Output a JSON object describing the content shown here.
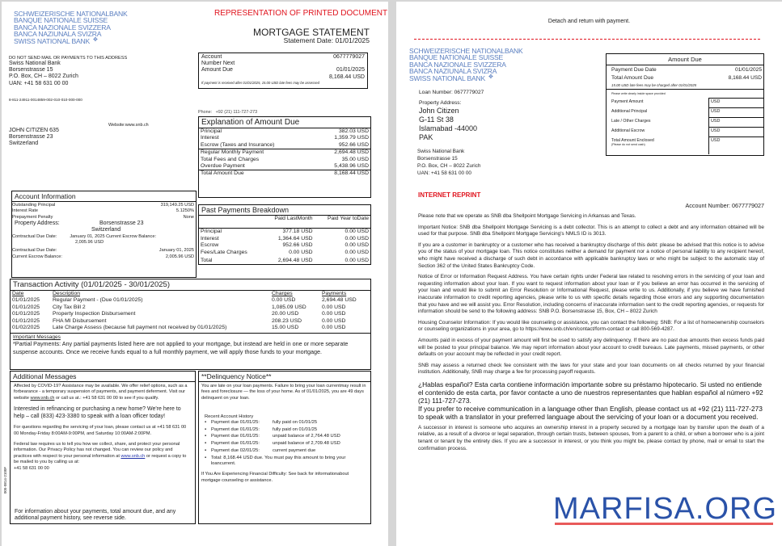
{
  "bank_logo": [
    "SCHWEIZERISCHE NATIONALBANK",
    "BANQUE NATIONALE SUISSE",
    "BANCA NAZIONALE SVIZZERA",
    "BANCA NAZIUNALA SVIZRA",
    "SWISS NATIONAL BANK"
  ],
  "statement": {
    "banner": "REPRESENTATION OF PRINTED DOCUMENT",
    "title": "MORTGAGE STATEMENT",
    "date": "Statement Date: 01/01/2025",
    "return_address": {
      "warning": "DO NOT SEND MAIL OR PAYMENTS TO THIS ADDRESS",
      "lines": [
        "Swiss National Bank",
        "Borsenstrasse 15",
        "P.O. Box, CH – 8022 Zurich",
        "UAN: +41 58 631 00 00"
      ]
    },
    "barcode_number": "8-811-24911-0014859-002-010-010-000-000",
    "website": "Website:www.snb.ch",
    "phone_label": "Phone:",
    "phone": "+92 (21) 111-727-273",
    "recipient": [
      "JOHN CITIZEN 635",
      "Borsenstrasse 23",
      "Switzerland"
    ],
    "account_box": {
      "rows": [
        [
          "Account",
          "0677779027"
        ],
        [
          "Number Next",
          ""
        ],
        [
          "Amount Due",
          "01/01/2025"
        ],
        [
          "",
          "8,168.44 USD"
        ]
      ],
      "note": "If payment is received after 01/01/2025, 15.00 USD late fees may be assessed"
    },
    "explanation": {
      "title": "Explanation of Amount Due",
      "rows": [
        [
          "Principal",
          "382.03 USD"
        ],
        [
          "Interest",
          "1,359.79 USD"
        ],
        [
          "Escrow (Taxes and Insurance)",
          "952.66 USD"
        ],
        [
          "Regular Monthly Payment",
          "2,694.48 USD"
        ],
        [
          "Total Fees and Charges",
          "35.00 USD"
        ],
        [
          "Overdue Payment",
          "5,438.96 USD"
        ],
        [
          "Total Amount Due",
          "8,168.44 USD"
        ]
      ]
    },
    "account_info": {
      "title": "Account Information",
      "rows": [
        [
          "Outstanding Principal",
          "319,149.25 USD"
        ],
        [
          "Interest Rate",
          "5.1250%"
        ],
        [
          "Prepayment Penalty",
          "None"
        ]
      ],
      "property_label": "Property Address:",
      "property": [
        "Borsenstrasse 23",
        "Switzerland"
      ],
      "due_line": "Contractual Due Date:",
      "due_line_value": "January 01, 2025 Current Escrow Balance:",
      "due_line_value2": "2,005.96 USD",
      "rows2": [
        [
          "Contractual Due Date:",
          "January 01, 2025"
        ],
        [
          "Current Escrow Balance:",
          "2,005.96 USD"
        ]
      ]
    },
    "past_payments": {
      "title": "Past Payments Breakdown",
      "headers": [
        "",
        "Paid LastMonth",
        "Paid Year toDate"
      ],
      "rows": [
        [
          "Principal",
          "377.18 USD",
          "0.00 USD"
        ],
        [
          "Interest",
          "1,364.64 USD",
          "0.00 USD"
        ],
        [
          "Escrow",
          "952.66 USD",
          "0.00 USD"
        ],
        [
          "Fees/Late Charges",
          "0.00 USD",
          "0.00 USD"
        ],
        [
          "Total",
          "2,694.48 USD",
          "0.00 USD"
        ]
      ]
    },
    "transactions": {
      "title": "Transaction Activity (01/01/2025 - 30/01/2025)",
      "headers": [
        "Date",
        "Description",
        "Charges",
        "Payments"
      ],
      "rows": [
        [
          "01/01/2025",
          "Regular Payment - (Due 01/01/2025)",
          "0.00 USD",
          "2,694.48 USD"
        ],
        [
          "01/01/2025",
          "City Tax Bill 2",
          "1,085.09 USD",
          "0.00 USD"
        ],
        [
          "01/01/2025",
          "Property Inspection Disbursement",
          "20.00 USD",
          "0.00 USD"
        ],
        [
          "01/01/2025",
          "FHA MI Disbursement",
          "208.23 USD",
          "0.00 USD"
        ],
        [
          "01/02/2025",
          "Late Charge Assess (because full payment not received by 01/01/2025)",
          "15.00 USD",
          "0.00 USD"
        ]
      ]
    },
    "important": {
      "title": "Important Messages",
      "text": "*Partial Payments: Any partial payments listed here are not applied to your mortgage, but instead are held in one or more separate suspense accounts. Once we receive funds equal to a full monthly payment, we will apply those funds to your mortgage."
    },
    "additional": {
      "title": "Additional Messages",
      "covid_a": "Affected by COVID-19? Assistance may be available. We offer relief options, such as a forbearance - a temporary suspension of payments, and payment deferment. Visit our website ",
      "covid_link": "www.snb.ch",
      "covid_b": " or call us at.: +41 58 631 00 00 to see if you qualify.",
      "refi": "Interested in refinancing or purchasing a new home? We're here to help – call (833) 423-3380 to speak with a loan officer today!",
      "questions": "For questions regarding the servicing of your loan, please contact us at +41 58 631 00 00 Monday-Friday 8:00AM-9:00PM, and Saturday 10:00AM-2:00PM.",
      "privacy_a": "Federal law requires us to tell you how we collect, share, and protect your personal information. Our Privacy Policy has not changed. You can review our policy and practices with respect to your personal information at ",
      "privacy_link": "www.snb.ch",
      "privacy_b": " or request a copy to be mailed to you by calling us at:",
      "privacy_phone": "+41 58 631 00 00",
      "footer": "For information about your payments, total amount due, and any additional payment history, see reverse side."
    },
    "delinquency": {
      "title": "**Delinquency Notice**",
      "text": "You are late on your loan payments. Failure to bring your loan currentmay result in fees and foreclosure — the loss of your home. As of 01/01/2025, you are 49 days delinquent on your loan.",
      "history_title": "Recent Account History",
      "history": [
        [
          "Payment due 01/01/25:",
          "fully paid on 01/01/25"
        ],
        [
          "Payment due 01/01/25:",
          "fully paid on 01/01/25"
        ],
        [
          "Payment due 01/01/25:",
          "unpaid balance of 2,764.48 USD"
        ],
        [
          "Payment due 01/01/25:",
          "unpaid balance of 2,709.48 USD"
        ],
        [
          "Payment due 02/01/25:",
          "current payment due"
        ]
      ],
      "total": "Total: 8,168.44 USD due. You must pay this amount to bring your loancurrent.",
      "hardship": "If You Are Experiencing Financial Difficulty: See back for informationabout mortgage counseling or assistance."
    },
    "side_code": "005-0814-2100F"
  },
  "coupon": {
    "detach": "Detach and return with payment.",
    "loan_number": "Loan Number: 0677779027",
    "property_label": "Property Address:",
    "property": [
      "John Citizen",
      "G-11 St 38",
      "Islamabad -44000",
      "PAK"
    ],
    "bank": [
      "Swiss National Bank",
      "Borsenstrasse 15",
      "P.O. Box, CH – 8022 Zurich",
      "UAN: +41 58 631 00 00"
    ],
    "amount_due": {
      "title": "Amount Due",
      "rows": [
        [
          "Payment Due Date",
          "01/01/2025"
        ],
        [
          "Total Amount Due",
          "8,168.44 USD"
        ]
      ],
      "late_note": "15.00 USD late fees may be charged after 01/01/2025",
      "instruction": "Please write clearly inside space provided",
      "fields": [
        [
          "Payment Amount",
          "USD"
        ],
        [
          "Additional Principal",
          "USD"
        ],
        [
          "Late / Other Charges",
          "USD"
        ],
        [
          "Additional Escrow",
          "USD"
        ],
        [
          "Total Amount Enclosed",
          "USD"
        ]
      ],
      "cash_note": "(Please do not send cash)"
    },
    "reprint": "INTERNET REPRINT",
    "account_number": "Account Number: 0677779027",
    "paragraphs": [
      "Please note that we operate as SNB dba Shellpoint Mortgage Servicing in Arkansas and Texas.",
      "Important Notice: SNB dba Shellpoint Mortgage Servicing is a debt collector. This is an attempt to collect a debt and any information obtained will be used for that purpose. SNB dba Shellpoint Mortgage Servicing's NMLS ID is 3013.",
      "If you are a customer in bankruptcy or a customer who has received a bankruptcy discharge of this debt: please be advised that this notice is to advise you of the status of your mortgage loan. This notice constitutes neither a demand for payment nor a notice of personal liability to any recipient hereof, who might have received a discharge of such debt in accordance with applicable bankruptcy laws or who might be subject to the automatic stay of Section 362 of the United States Bankruptcy Code.",
      "Notice of Error or Information Request Address. You have certain rights under Federal law related to resolving errors in the servicing of your loan and requesting information about your loan. If you want to request information about your loan or if you believe an error has occurred in the servicing of your loan and would like to submit an Error Resolution or Informational Request, please write to us. Additionally, if you believe we have furnished inaccurate information to credit reporting agencies, please write to us with specific details regarding those errors and any supporting documentation that you have and we will assist you. Error Resolution, including concerns of inaccurate information sent to the credit reporting agencies, or requests for information should be send to the following address: SNB P.O. Borsenstrasse 15, Box, CH – 8022 Zurich",
      "Housing Counselor Information: If you would like counseling or assistance, you can contact the following: SNB: For a list of homeownership counselors or counseling organizations in your area, go to https://www.snb.ch/en/contact/form-contact or call 800-569-4287.",
      "Amounts paid in excess of your payment amount will first be used to satisfy any delinquency. If there are no past due amounts then excess funds paid will be posted to your principal balance. We may report information about your account to credit bureaus. Late payments, missed payments, or other defaults on your account may be reflected in your credit report.",
      "SNB may assess a returned check fee consistent with the laws for your state and your loan documents on all checks returned by your financial institution. Additionally, SNB may charge a fee for processing payoff requests."
    ],
    "spanish": "¿Hablas español? Esta carta contiene información importante sobre su préstamo hipotecario. Si usted no entiende el contenido de esta carta, por favor contacte a uno de nuestros representantes que hablan español al número +92 (21) 111-727-273.",
    "language": "If you prefer to receive communication in a language other than English, please contact us at +92 (21) 111-727-273 to speak with a translator in your preferred language about the servicing of your loan or a document you received.",
    "successor": "A successor in interest is someone who acquires an ownership interest in a property secured by a mortgage loan by transfer upon the death of a relative, as a result of a divorce or legal separation, through certain trusts, between spouses, from a parent to a child, or when a borrower who is a joint tenant or tenant by the entirety dies. If you are a successor in interest, or you think you might be, please contact by phone, mail or email to start the confirmation process."
  },
  "watermark": "MARFISA.ORG",
  "colors": {
    "logo_blue": "#5b7fc0",
    "red": "#e0141e",
    "watermark_blue": "#2a52a8",
    "watermark_underline": "#e85a5a"
  }
}
